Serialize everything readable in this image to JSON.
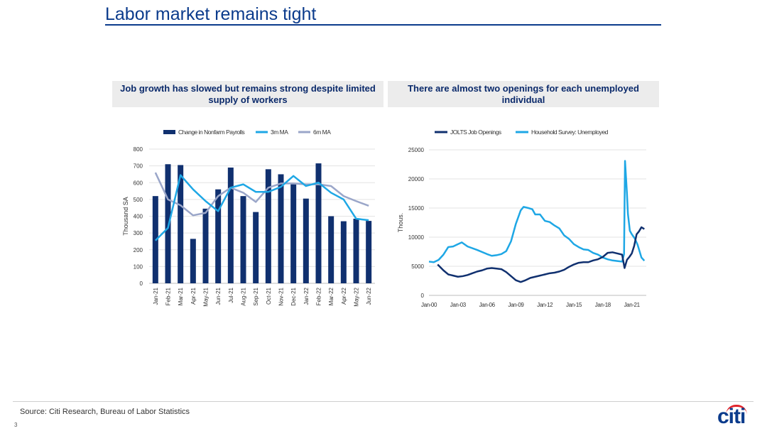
{
  "slide": {
    "title": "Labor market remains tight",
    "page_number": "3",
    "source": "Source: Citi Research, Bureau of Labor Statistics",
    "logo_text": "citi"
  },
  "colors": {
    "title_blue": "#0b3b8c",
    "navy": "#10306f",
    "light_blue": "#1ea7e5",
    "gray_blue": "#9aa6c9",
    "header_bg": "#ececec",
    "logo_red": "#e3242b"
  },
  "chart_data": [
    {
      "type": "bar",
      "title": "Job growth has slowed but remains strong despite limited supply of workers",
      "ylabel": "Thousand SA",
      "ylim": [
        0,
        800
      ],
      "yticks": [
        "0",
        "100",
        "200",
        "300",
        "400",
        "500",
        "600",
        "700",
        "800"
      ],
      "categories": [
        "Jan-21",
        "Feb-21",
        "Mar-21",
        "Apr-21",
        "May-21",
        "Jun-21",
        "Jul-21",
        "Aug-21",
        "Sep-21",
        "Oct-21",
        "Nov-21",
        "Dec-21",
        "Jan-22",
        "Feb-22",
        "Mar-22",
        "Apr-22",
        "May-22",
        "Jun-22"
      ],
      "series": [
        {
          "name": "Change in Nonfarm Payrolls",
          "kind": "bar",
          "values": [
            520,
            710,
            705,
            265,
            445,
            560,
            690,
            520,
            425,
            680,
            650,
            590,
            505,
            715,
            400,
            370,
            385,
            372
          ]
        },
        {
          "name": "3m MA",
          "kind": "line",
          "values": [
            255,
            330,
            645,
            560,
            490,
            430,
            570,
            590,
            545,
            545,
            575,
            640,
            580,
            600,
            540,
            500,
            385,
            376
          ]
        },
        {
          "name": "6m MA",
          "kind": "line",
          "values": [
            660,
            500,
            465,
            405,
            420,
            520,
            570,
            540,
            485,
            570,
            595,
            595,
            590,
            590,
            580,
            520,
            490,
            462
          ]
        }
      ],
      "legend": "top"
    },
    {
      "type": "line",
      "title": "There are almost two openings for each unemployed individual",
      "ylabel": "Thous.",
      "ylim": [
        0,
        25000
      ],
      "yticks": [
        "0",
        "5000",
        "10000",
        "15000",
        "20000",
        "25000"
      ],
      "xlim": [
        2000.0,
        2022.5
      ],
      "xticks": [
        {
          "label": "Jan-00",
          "x": 2000
        },
        {
          "label": "Jan-03",
          "x": 2003
        },
        {
          "label": "Jan-06",
          "x": 2006
        },
        {
          "label": "Jan-09",
          "x": 2009
        },
        {
          "label": "Jan-12",
          "x": 2012
        },
        {
          "label": "Jan-15",
          "x": 2015
        },
        {
          "label": "Jan-18",
          "x": 2018
        },
        {
          "label": "Jan-21",
          "x": 2021
        }
      ],
      "series": [
        {
          "name": "JOLTS Job Openings",
          "points": [
            [
              2000.9,
              5300
            ],
            [
              2001.5,
              4300
            ],
            [
              2002.0,
              3600
            ],
            [
              2002.5,
              3400
            ],
            [
              2003.0,
              3200
            ],
            [
              2003.5,
              3300
            ],
            [
              2004.0,
              3500
            ],
            [
              2004.5,
              3800
            ],
            [
              2005.0,
              4100
            ],
            [
              2005.5,
              4300
            ],
            [
              2006.0,
              4600
            ],
            [
              2006.5,
              4700
            ],
            [
              2007.0,
              4600
            ],
            [
              2007.5,
              4500
            ],
            [
              2008.0,
              4000
            ],
            [
              2008.5,
              3300
            ],
            [
              2009.0,
              2600
            ],
            [
              2009.5,
              2300
            ],
            [
              2010.0,
              2600
            ],
            [
              2010.5,
              3000
            ],
            [
              2011.0,
              3200
            ],
            [
              2011.5,
              3400
            ],
            [
              2012.0,
              3600
            ],
            [
              2012.5,
              3800
            ],
            [
              2013.0,
              3900
            ],
            [
              2013.5,
              4100
            ],
            [
              2014.0,
              4400
            ],
            [
              2014.5,
              4900
            ],
            [
              2015.0,
              5300
            ],
            [
              2015.5,
              5600
            ],
            [
              2016.0,
              5700
            ],
            [
              2016.5,
              5700
            ],
            [
              2017.0,
              6000
            ],
            [
              2017.5,
              6200
            ],
            [
              2018.0,
              6600
            ],
            [
              2018.5,
              7300
            ],
            [
              2019.0,
              7400
            ],
            [
              2019.5,
              7200
            ],
            [
              2020.0,
              7000
            ],
            [
              2020.25,
              4700
            ],
            [
              2020.5,
              6100
            ],
            [
              2020.75,
              6600
            ],
            [
              2021.0,
              7200
            ],
            [
              2021.25,
              8500
            ],
            [
              2021.5,
              10500
            ],
            [
              2021.75,
              11000
            ],
            [
              2022.0,
              11700
            ],
            [
              2022.3,
              11400
            ]
          ]
        },
        {
          "name": "Household Survey: Unemployed",
          "points": [
            [
              2000.0,
              5800
            ],
            [
              2000.5,
              5700
            ],
            [
              2001.0,
              6100
            ],
            [
              2001.5,
              7000
            ],
            [
              2002.0,
              8300
            ],
            [
              2002.5,
              8400
            ],
            [
              2003.0,
              8800
            ],
            [
              2003.4,
              9100
            ],
            [
              2004.0,
              8400
            ],
            [
              2005.0,
              7800
            ],
            [
              2006.0,
              7100
            ],
            [
              2006.5,
              6800
            ],
            [
              2007.0,
              6900
            ],
            [
              2007.5,
              7100
            ],
            [
              2008.0,
              7600
            ],
            [
              2008.5,
              9300
            ],
            [
              2009.0,
              12300
            ],
            [
              2009.5,
              14600
            ],
            [
              2009.8,
              15200
            ],
            [
              2010.3,
              15000
            ],
            [
              2010.7,
              14800
            ],
            [
              2011.0,
              13900
            ],
            [
              2011.5,
              13900
            ],
            [
              2012.0,
              12800
            ],
            [
              2012.5,
              12600
            ],
            [
              2013.0,
              12000
            ],
            [
              2013.5,
              11500
            ],
            [
              2014.0,
              10300
            ],
            [
              2014.5,
              9700
            ],
            [
              2015.0,
              8800
            ],
            [
              2015.5,
              8300
            ],
            [
              2016.0,
              7900
            ],
            [
              2016.5,
              7800
            ],
            [
              2017.0,
              7300
            ],
            [
              2017.5,
              7000
            ],
            [
              2018.0,
              6500
            ],
            [
              2018.5,
              6200
            ],
            [
              2019.0,
              6000
            ],
            [
              2019.5,
              5900
            ],
            [
              2020.0,
              5800
            ],
            [
              2020.2,
              7100
            ],
            [
              2020.3,
              23100
            ],
            [
              2020.5,
              17500
            ],
            [
              2020.6,
              14000
            ],
            [
              2020.8,
              11100
            ],
            [
              2021.0,
              10500
            ],
            [
              2021.3,
              9800
            ],
            [
              2021.6,
              8700
            ],
            [
              2022.0,
              6500
            ],
            [
              2022.3,
              5950
            ]
          ]
        }
      ],
      "legend": "top"
    }
  ]
}
